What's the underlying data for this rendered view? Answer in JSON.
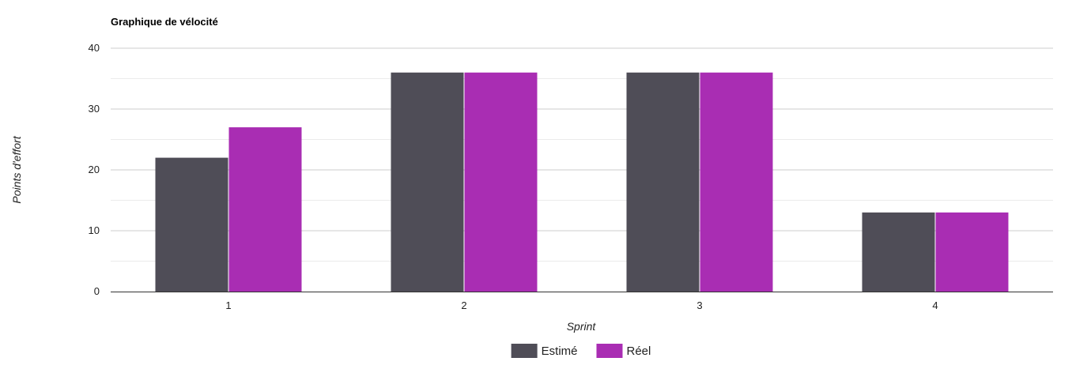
{
  "chart_data": {
    "type": "bar",
    "title": "Graphique de vélocité",
    "xlabel": "Sprint",
    "ylabel": "Points d'effort",
    "categories": [
      "1",
      "2",
      "3",
      "4"
    ],
    "series": [
      {
        "name": "Estimé",
        "values": [
          22,
          36,
          36,
          13
        ],
        "color": "#4f4d57"
      },
      {
        "name": "Réel",
        "values": [
          27,
          36,
          36,
          13
        ],
        "color": "#a92db3"
      }
    ],
    "ylim": [
      0,
      40
    ],
    "yticks": [
      0,
      10,
      20,
      30,
      40
    ],
    "grid": true,
    "legend": "bottom"
  }
}
